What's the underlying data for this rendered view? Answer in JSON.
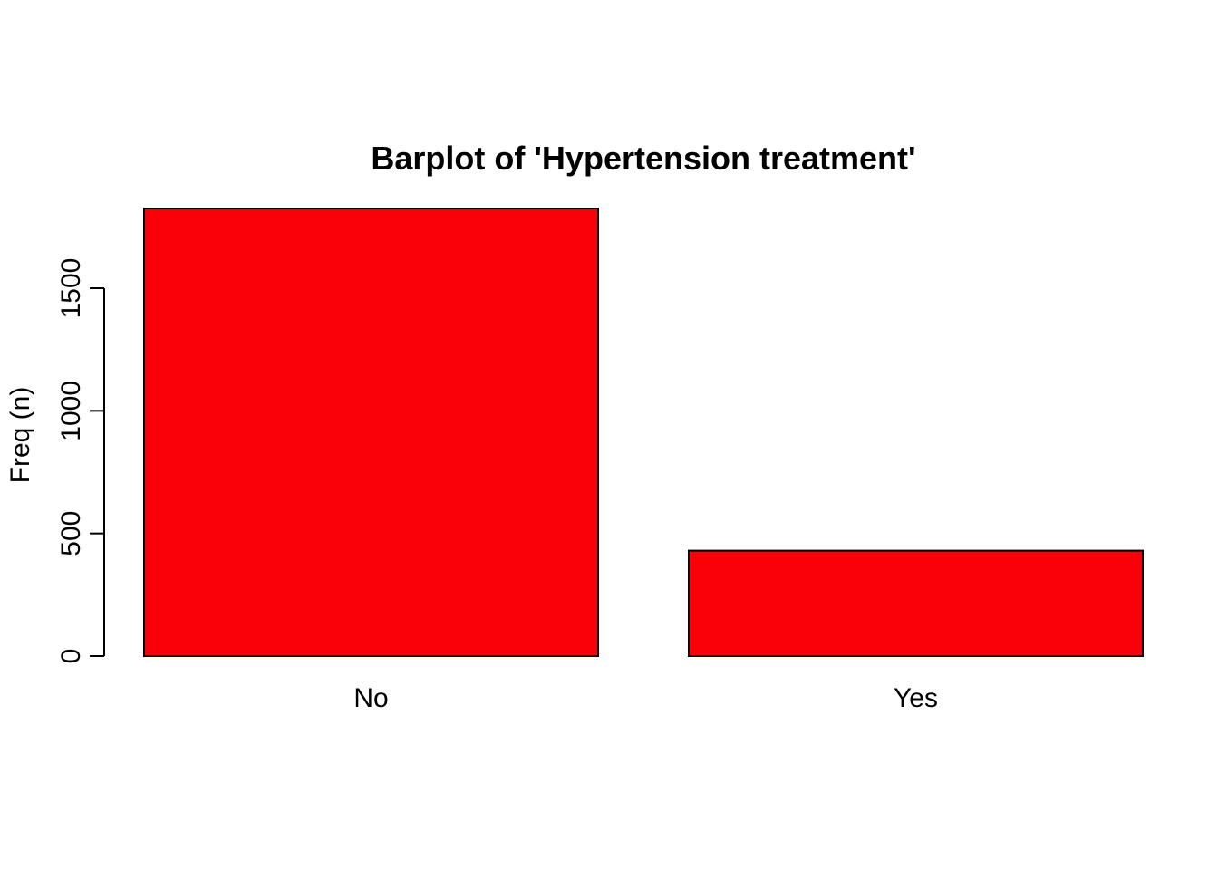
{
  "chart_data": {
    "type": "bar",
    "title": "Barplot of 'Hypertension treatment'",
    "xlabel": "",
    "ylabel": "Freq (n)",
    "categories": [
      "No",
      "Yes"
    ],
    "values": [
      1825,
      430
    ],
    "ylim": [
      0,
      1825
    ],
    "yticks": [
      0,
      500,
      1000,
      1500
    ],
    "ytick_labels": [
      "0",
      "500",
      "1000",
      "1500"
    ],
    "grid": false,
    "legend": "none",
    "colors": {
      "bar_fill": "#fa0009",
      "bar_stroke": "#000000",
      "axis": "#000000",
      "background": "#ffffff"
    }
  }
}
